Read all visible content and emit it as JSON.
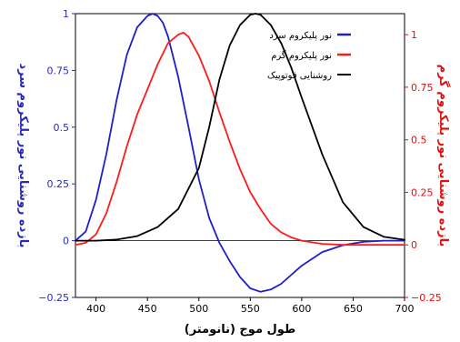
{
  "chart_data": {
    "type": "line",
    "xlabel": "طول موج (نانومتر)",
    "ylabel_left": "بازده روشنایی نور پلیکروم سرد",
    "ylabel_right": "بازده روشنایی نور پلیکروم گرم",
    "xlim": [
      380,
      700
    ],
    "ylim_left": [
      -0.25,
      1
    ],
    "ylim_right": [
      -0.25,
      1.1
    ],
    "x_ticks": [
      "400",
      "450",
      "500",
      "550",
      "600",
      "650",
      "700"
    ],
    "y_ticks_left": [
      "−0.25",
      "0",
      "0.25",
      "0.5",
      "0.75",
      "1"
    ],
    "y_ticks_right": [
      "−0.25",
      "0",
      "0.25",
      "0.5",
      "0.75",
      "1"
    ],
    "legend_position": "top-right",
    "legend": [
      {
        "label": "نور پلیکروم سرد",
        "color": "#1f1fcc"
      },
      {
        "label": "نور پلیکروم گرم",
        "color": "#ff1a1a"
      },
      {
        "label": "روشنایی فوتوپیک",
        "color": "#000000"
      }
    ],
    "colors": {
      "cold": "#1f1fcc",
      "warm": "#ff1a1a",
      "photopic": "#000000",
      "left_axis": "#2a2ab8",
      "right_axis": "#e01010"
    },
    "series": [
      {
        "name": "نور پلیکروم سرد",
        "axis": "left",
        "x": [
          380,
          390,
          400,
          410,
          420,
          430,
          440,
          450,
          455,
          460,
          465,
          470,
          480,
          490,
          500,
          510,
          520,
          530,
          540,
          550,
          560,
          570,
          580,
          590,
          600,
          620,
          640,
          660,
          680,
          700
        ],
        "y": [
          0.0,
          0.04,
          0.18,
          0.38,
          0.62,
          0.82,
          0.94,
          0.99,
          1.0,
          0.99,
          0.96,
          0.9,
          0.72,
          0.5,
          0.27,
          0.1,
          -0.01,
          -0.09,
          -0.16,
          -0.21,
          -0.225,
          -0.215,
          -0.19,
          -0.15,
          -0.11,
          -0.05,
          -0.02,
          -0.005,
          0.0,
          0.0
        ]
      },
      {
        "name": "نور پلیکروم گرم",
        "axis": "right",
        "x": [
          380,
          390,
          400,
          410,
          420,
          430,
          440,
          450,
          460,
          470,
          480,
          485,
          490,
          500,
          510,
          520,
          530,
          540,
          550,
          560,
          570,
          580,
          590,
          600,
          620,
          640,
          660,
          680,
          700
        ],
        "y": [
          0.0,
          0.01,
          0.05,
          0.15,
          0.3,
          0.47,
          0.62,
          0.74,
          0.86,
          0.96,
          1.0,
          1.01,
          0.99,
          0.9,
          0.78,
          0.63,
          0.49,
          0.36,
          0.25,
          0.17,
          0.1,
          0.06,
          0.035,
          0.02,
          0.005,
          0.0,
          0.0,
          0.0,
          0.0
        ]
      },
      {
        "name": "روشنایی فوتوپیک",
        "axis": "left",
        "x": [
          380,
          400,
          420,
          440,
          460,
          480,
          500,
          510,
          520,
          530,
          540,
          550,
          555,
          560,
          570,
          580,
          590,
          600,
          620,
          640,
          660,
          680,
          700
        ],
        "y": [
          0.0,
          0.0,
          0.005,
          0.02,
          0.06,
          0.14,
          0.32,
          0.5,
          0.71,
          0.86,
          0.95,
          0.995,
          1.0,
          0.995,
          0.95,
          0.87,
          0.76,
          0.63,
          0.38,
          0.17,
          0.06,
          0.017,
          0.004
        ]
      }
    ]
  }
}
